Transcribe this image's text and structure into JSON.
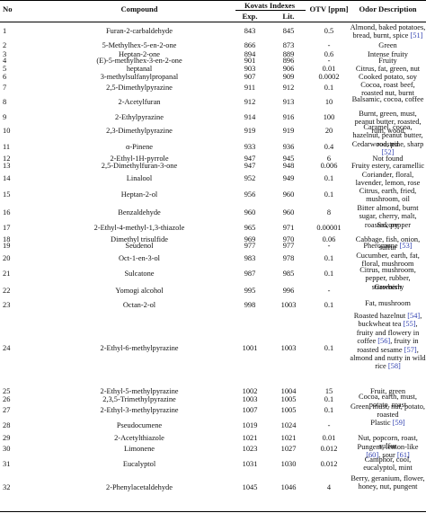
{
  "headers": {
    "no": "No",
    "compound": "Compound",
    "kovats": "Kovats Indexes",
    "exp": "Exp.",
    "lit": "Lit.",
    "otv": "OTV [ppm]",
    "odor": "Odor Description"
  },
  "rows": [
    {
      "no": "1",
      "compound": "Furan-2-carbaldehyde",
      "exp": "843",
      "lit": "845",
      "otv": "0.5",
      "odor": "Almond, baked potatoes, bread, burnt, spice [51]"
    },
    {
      "no": "2",
      "compound": "5-Methylhex-5-en-2-one",
      "exp": "866",
      "lit": "873",
      "otv": "-",
      "odor": "Green"
    },
    {
      "no": "3",
      "compound": "Heptan-2-one",
      "exp": "894",
      "lit": "889",
      "otv": "0.6",
      "odor": "Intense fruity"
    },
    {
      "no": "4",
      "compound": "(E)-5-methylhex-3-en-2-one",
      "exp": "901",
      "lit": "896",
      "otv": "-",
      "odor": "Fruity"
    },
    {
      "no": "5",
      "compound": "heptanal",
      "exp": "903",
      "lit": "906",
      "otv": "0.01",
      "odor": "Citrus, fat, green, nut"
    },
    {
      "no": "6",
      "compound": "3-methylsulfanylpropanal",
      "exp": "907",
      "lit": "909",
      "otv": "0.0002",
      "odor": "Cooked potato, soy"
    },
    {
      "no": "7",
      "compound": "2,5-Dimethylpyrazine",
      "exp": "911",
      "lit": "912",
      "otv": "0.1",
      "odor": "Cocoa, roast beef, roasted nut, burnt"
    },
    {
      "no": "8",
      "compound": "2-Acetylfuran",
      "exp": "912",
      "lit": "913",
      "otv": "10",
      "odor": "Balsamic, cocoa, coffee"
    },
    {
      "no": "9",
      "compound": "2-Ethylpyrazine",
      "exp": "914",
      "lit": "916",
      "otv": "100",
      "odor": "Burnt, green, must, peanut butter, roasted, rum, wood"
    },
    {
      "no": "10",
      "compound": "2,3-Dimethylpyrazine",
      "exp": "919",
      "lit": "919",
      "otv": "20",
      "odor": "Caramel, cocoa, hazelnut, peanut butter, roasted"
    },
    {
      "no": "11",
      "compound": "α-Pinene",
      "exp": "933",
      "lit": "936",
      "otv": "0.4",
      "odor": "Cedarwood, pine, sharp [52]"
    },
    {
      "no": "12",
      "compound": "2-Ethyl-1H-pyrrole",
      "exp": "947",
      "lit": "945",
      "otv": "6",
      "odor": "Not found"
    },
    {
      "no": "13",
      "compound": "2,5-Dimethylfuran-3-one",
      "exp": "947",
      "lit": "948",
      "otv": "0.006",
      "odor": "Fruity estery, caramellic"
    },
    {
      "no": "14",
      "compound": "Linalool",
      "exp": "952",
      "lit": "949",
      "otv": "0.1",
      "odor": "Coriander, floral, lavender, lemon, rose"
    },
    {
      "no": "15",
      "compound": "Heptan-2-ol",
      "exp": "956",
      "lit": "960",
      "otv": "0.1",
      "odor": "Citrus, earth, fried, mushroom, oil"
    },
    {
      "no": "16",
      "compound": "Benzaldehyde",
      "exp": "960",
      "lit": "960",
      "otv": "8",
      "odor": "Bitter almond, burnt sugar, cherry, malt, roasted, pepper"
    },
    {
      "no": "17",
      "compound": "2-Ethyl-4-methyl-1,3-thiazole",
      "exp": "965",
      "lit": "971",
      "otv": "0.00001",
      "odor": "Savory"
    },
    {
      "no": "18",
      "compound": "Dimethyl trisulfide",
      "exp": "969",
      "lit": "970",
      "otv": "0.06",
      "odor": "Cabbage, fish, onion, sulfur"
    },
    {
      "no": "19",
      "compound": "Seudenol",
      "exp": "977",
      "lit": "977",
      "otv": "-",
      "odor": "Pheromone [53]"
    },
    {
      "no": "20",
      "compound": "Oct-1-en-3-ol",
      "exp": "983",
      "lit": "978",
      "otv": "0.1",
      "odor": "Cucumber, earth, fat, floral, mushroom"
    },
    {
      "no": "21",
      "compound": "Sulcatone",
      "exp": "987",
      "lit": "985",
      "otv": "0.1",
      "odor": "Citrus, mushroom, pepper, rubber, strawberry"
    },
    {
      "no": "22",
      "compound": "Yomogi alcohol",
      "exp": "995",
      "lit": "996",
      "otv": "-",
      "odor": "Greenish"
    },
    {
      "no": "23",
      "compound": "Octan-2-ol",
      "exp": "998",
      "lit": "1003",
      "otv": "0.1",
      "odor": "Fat, mushroom"
    },
    {
      "no": "24",
      "compound": "2-Ethyl-6-methylpyrazine",
      "exp": "1001",
      "lit": "1003",
      "otv": "0.1",
      "odor": "Roasted hazelnut [54], buckwheat tea [55], fruity and flowery in coffee [56], fruity in roasted sesame [57], almond and nutty in wild rice [58]"
    },
    {
      "no": "25",
      "compound": "2-Ethyl-5-methylpyrazine",
      "exp": "1002",
      "lit": "1004",
      "otv": "15",
      "odor": "Fruit, green"
    },
    {
      "no": "26",
      "compound": "2,3,5-Trimethylpyrazine",
      "exp": "1003",
      "lit": "1005",
      "otv": "0.1",
      "odor": "Cocoa, earth, must, potato, roast"
    },
    {
      "no": "27",
      "compound": "2-Ethyl-3-methylpyrazine",
      "exp": "1007",
      "lit": "1005",
      "otv": "0.1",
      "odor": "Green, must, nut, potato, roasted"
    },
    {
      "no": "28",
      "compound": "Pseudocumene",
      "exp": "1019",
      "lit": "1024",
      "otv": "-",
      "odor": "Plastic [59]"
    },
    {
      "no": "29",
      "compound": "2-Acetylthiazole",
      "exp": "1021",
      "lit": "1021",
      "otv": "0.01",
      "odor": "Nut, popcorn, roast, sulfur"
    },
    {
      "no": "30",
      "compound": "Limonene",
      "exp": "1023",
      "lit": "1027",
      "otv": "0.012",
      "odor": "Pungent, lemon-like [60], sour [61]"
    },
    {
      "no": "31",
      "compound": "Eucalyptol",
      "exp": "1031",
      "lit": "1030",
      "otv": "0.012",
      "odor": "Camphor, cool, eucalyptol, mint"
    },
    {
      "no": "32",
      "compound": "2-Phenylacetaldehyde",
      "exp": "1045",
      "lit": "1046",
      "otv": "4",
      "odor": "Berry, geranium, flower, honey, nut, pungent"
    }
  ]
}
